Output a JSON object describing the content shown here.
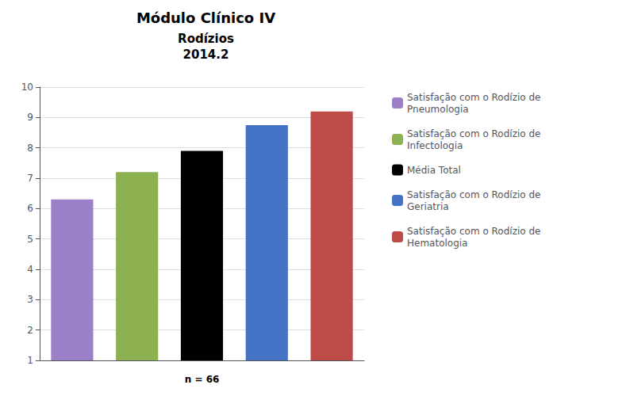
{
  "chart_data": {
    "type": "bar",
    "title": "Módulo Clínico IV",
    "subtitle": "Rodízios\n2014.2",
    "annotation": "n = 66",
    "categories": [
      "Satisfação com o Rodízio de\nPneumologia",
      "Satisfação com o Rodízio de\nInfectologia",
      "Média Total",
      "Satisfação com o Rodízio de\nGeriatria",
      "Satisfação com o Rodízio de\nHematologia"
    ],
    "values": [
      6.3,
      7.2,
      7.9,
      8.75,
      9.2
    ],
    "colors": [
      "#9b80c8",
      "#8db050",
      "#000000",
      "#4472c4",
      "#be4b48"
    ],
    "ylim": [
      1,
      10
    ],
    "yticks": [
      1,
      2,
      3,
      4,
      5,
      6,
      7,
      8,
      9,
      10
    ],
    "grid": true,
    "legend": "right",
    "tick_labels": "y"
  }
}
